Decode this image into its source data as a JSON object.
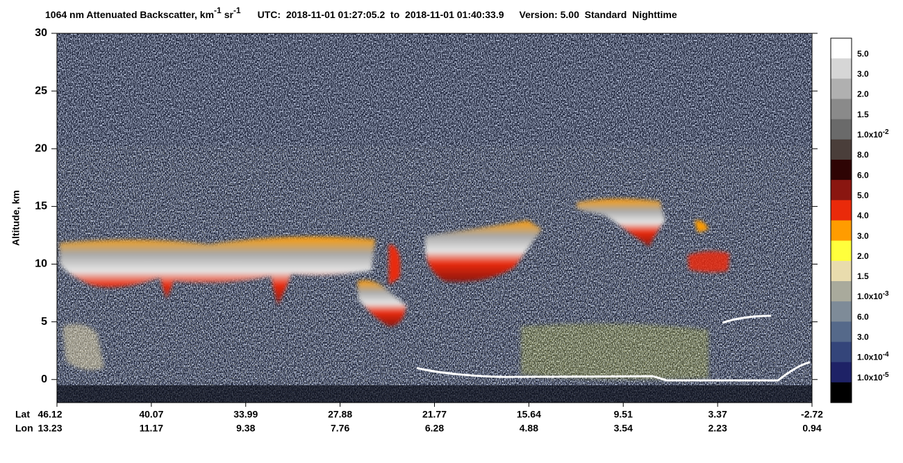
{
  "chart_data": {
    "type": "heatmap",
    "title": [
      "1064 nm Attenuated Backscatter, km",
      "-1",
      "sr",
      "-1"
    ],
    "utc": "UTC:  2018-11-01 01:27:05.2  to  2018-11-01 01:40:33.9",
    "version": "Version: 5.00  Standard  Nighttime",
    "ylabel": "Altitude, km",
    "ylim": [
      -2,
      30
    ],
    "yticks": [
      0,
      5,
      10,
      15,
      20,
      25,
      30
    ],
    "x_rows": [
      {
        "name": "Lat",
        "labels": [
          46.12,
          40.07,
          33.99,
          27.88,
          21.77,
          15.64,
          9.51,
          3.37,
          -2.72
        ]
      },
      {
        "name": "Lon",
        "labels": [
          13.23,
          11.17,
          9.38,
          7.76,
          6.28,
          4.88,
          3.54,
          2.23,
          0.94
        ]
      }
    ],
    "colorbar": {
      "colors": [
        "#ffffff",
        "#d6d6d6",
        "#b0b0b0",
        "#8a8a8a",
        "#6a6a6a",
        "#4a3e3a",
        "#2e0404",
        "#8a1610",
        "#ea2a0a",
        "#ff9c00",
        "#ffff3c",
        "#e9dcad",
        "#a9aa9c",
        "#7e8b98",
        "#55698a",
        "#34457a",
        "#1e2266",
        "#000000"
      ],
      "labels": [
        "5.0",
        "3.0",
        "2.0",
        "1.5",
        {
          "base": "1.0x10",
          "sup": "-2"
        },
        "8.0",
        "6.0",
        "5.0",
        "4.0",
        "3.0",
        "2.0",
        "1.5",
        {
          "base": "1.0x10",
          "sup": "-3"
        },
        "6.0",
        "3.0",
        {
          "base": "1.0x10",
          "sup": "-4"
        },
        {
          "base": "1.0x10",
          "sup": "-5"
        }
      ]
    }
  }
}
